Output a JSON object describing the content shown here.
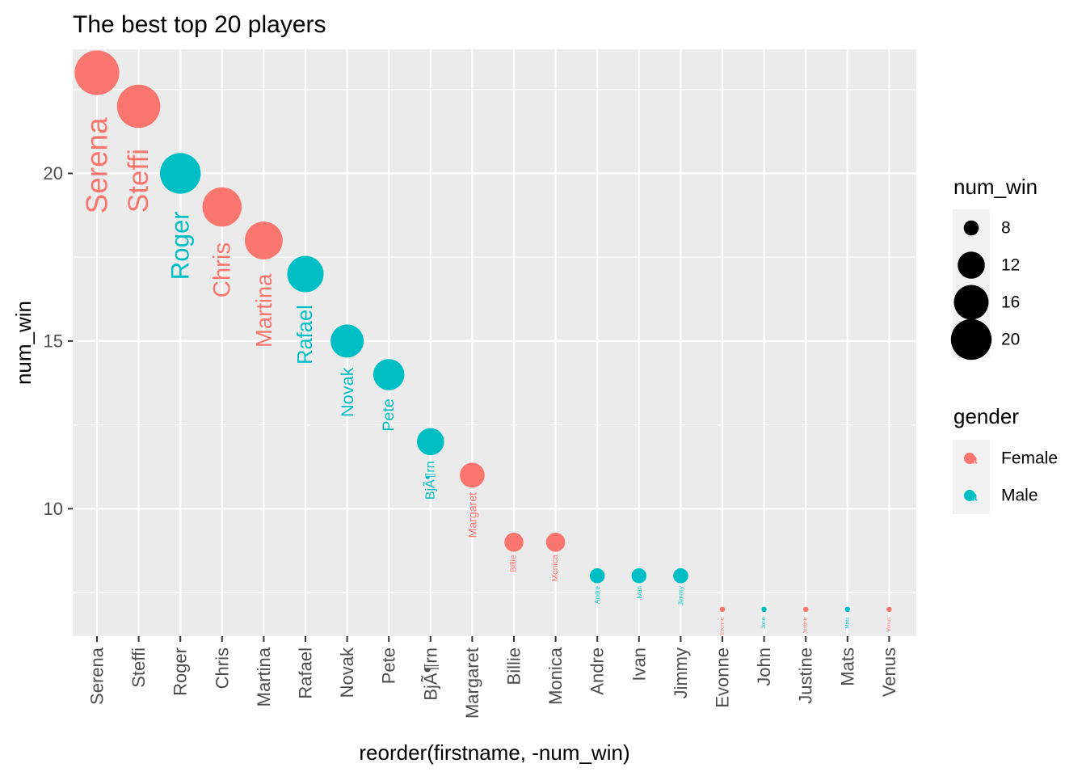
{
  "chart_data": {
    "type": "scatter",
    "title": "The best top 20 players",
    "xlabel": "reorder(firstname, -num_win)",
    "ylabel": "num_win",
    "ylim": [
      6.2,
      23.7
    ],
    "y_ticks": [
      10,
      15,
      20
    ],
    "grid": true,
    "categories": [
      "Serena",
      "Steffi",
      "Roger",
      "Chris",
      "Martina",
      "Rafael",
      "Novak",
      "Pete",
      "BjÃ¶rn",
      "Margaret",
      "Billie",
      "Monica",
      "Andre",
      "Ivan",
      "Jimmy",
      "Evonne",
      "John",
      "Justine",
      "Mats",
      "Venus"
    ],
    "values": [
      23,
      22,
      20,
      19,
      18,
      17,
      15,
      14,
      12,
      11,
      9,
      9,
      8,
      8,
      8,
      7,
      7,
      7,
      7,
      7
    ],
    "genders": [
      "Female",
      "Female",
      "Male",
      "Female",
      "Female",
      "Male",
      "Male",
      "Male",
      "Male",
      "Female",
      "Female",
      "Female",
      "Male",
      "Male",
      "Male",
      "Female",
      "Male",
      "Female",
      "Male",
      "Female"
    ],
    "point_labels": [
      "Serena",
      "Steffi",
      "Roger",
      "Chris",
      "Martina",
      "Rafael",
      "Novak",
      "Pete",
      "BjÃ¶rn",
      "Margaret",
      "Billie",
      "Monica",
      "Andre",
      "Ivan",
      "Jimmy",
      "Evonne",
      "John",
      "Justine",
      "Mats",
      "Venus"
    ],
    "legend_size": {
      "title": "num_win",
      "values": [
        8,
        12,
        16,
        20
      ]
    },
    "legend_color": {
      "title": "gender",
      "items": [
        {
          "name": "Female",
          "color": "#F8766D"
        },
        {
          "name": "Male",
          "color": "#00BFC4"
        }
      ],
      "key_glyph": "a"
    },
    "legend_placement": "right",
    "colors": {
      "Female": "#F8766D",
      "Male": "#00BFC4",
      "panel": "#EBEBEB",
      "grid": "#FFFFFF"
    }
  }
}
